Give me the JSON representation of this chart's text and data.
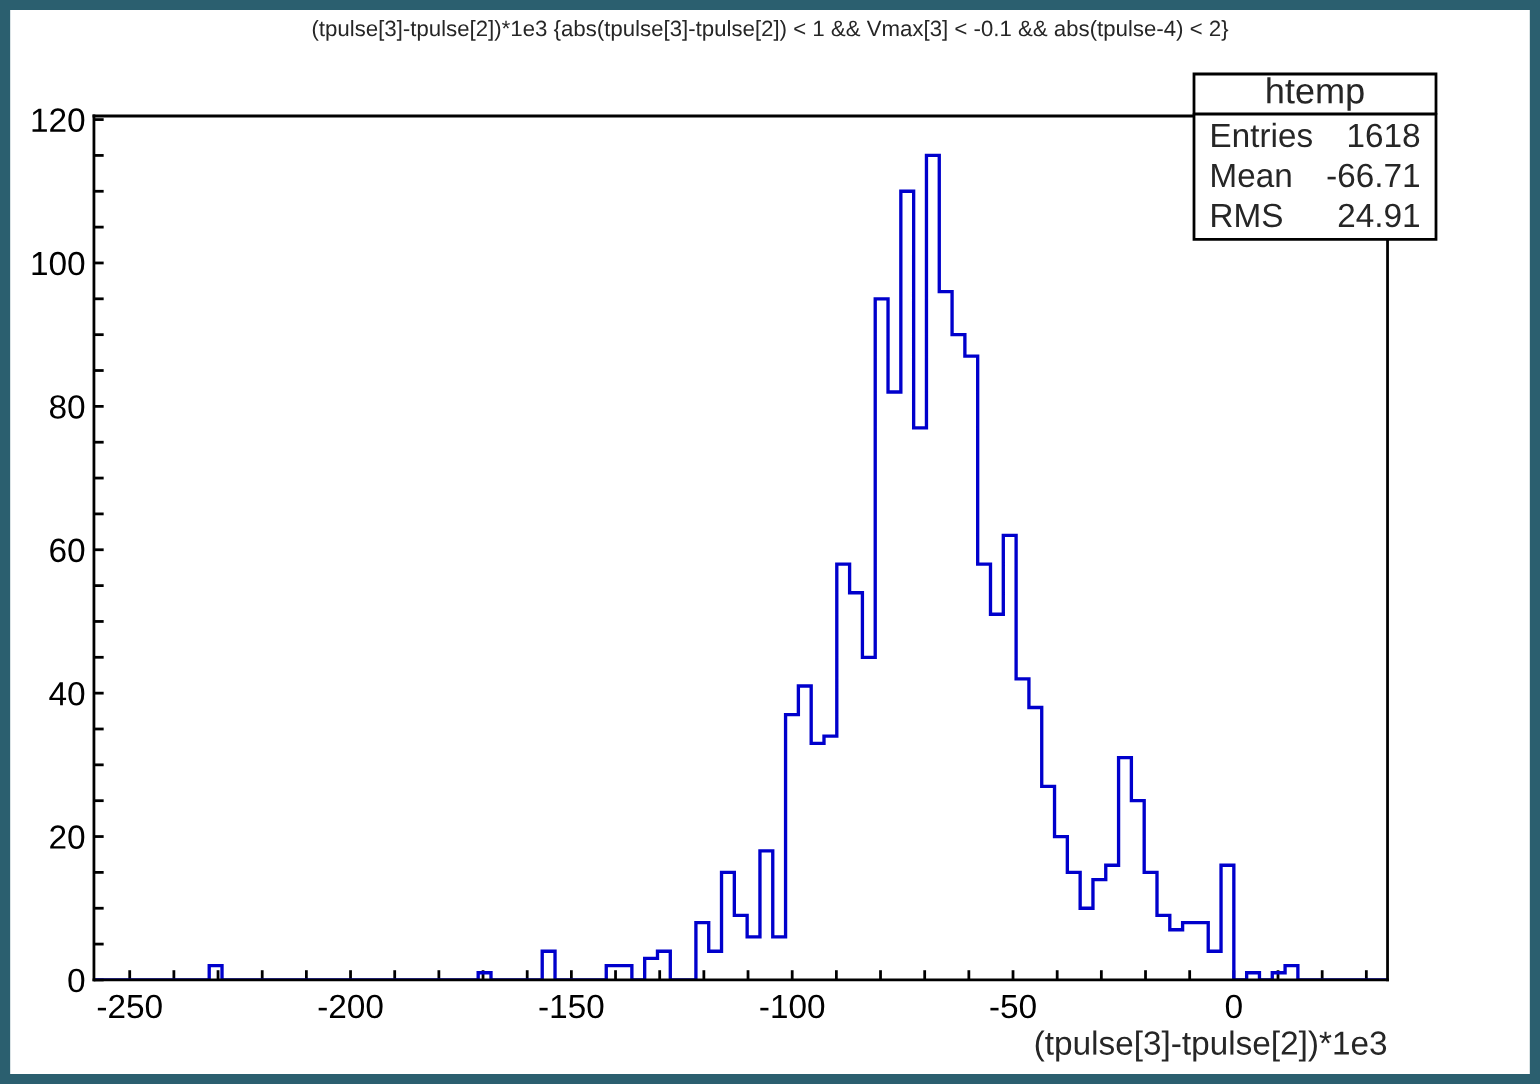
{
  "chart_data": {
    "type": "histogram",
    "title": "(tpulse[3]-tpulse[2])*1e3 {abs(tpulse[3]-tpulse[2]) < 1 && Vmax[3] < -0.1 && abs(tpulse-4) < 2}",
    "xlabel": "(tpulse[3]-tpulse[2])*1e3",
    "bins": [
      -258.1,
      -255.2,
      -252.3,
      -249.4,
      -246.5,
      -243.6,
      -240.7,
      -237.8,
      -234.9,
      -232,
      -229.1,
      -226.2,
      -223.3,
      -220.4,
      -217.5,
      -214.6,
      -211.7,
      -208.8,
      -205.9,
      -203,
      -200.1,
      -197.2,
      -194.3,
      -191.4,
      -188.5,
      -185.6,
      -182.7,
      -179.8,
      -176.9,
      -174,
      -171.1,
      -168.2,
      -165.3,
      -162.4,
      -159.5,
      -156.6,
      -153.7,
      -150.8,
      -147.9,
      -145,
      -142.1,
      -139.2,
      -136.3,
      -133.4,
      -130.5,
      -127.6,
      -124.7,
      -121.8,
      -118.9,
      -116,
      -113.1,
      -110.2,
      -107.3,
      -104.4,
      -101.5,
      -98.6,
      -95.7,
      -92.8,
      -89.9,
      -87,
      -84.1,
      -81.2,
      -78.3,
      -75.4,
      -72.5,
      -69.6,
      -66.7,
      -63.8,
      -60.9,
      -58,
      -55.1,
      -52.2,
      -49.3,
      -46.4,
      -43.5,
      -40.6,
      -37.7,
      -34.8,
      -31.9,
      -29,
      -26.1,
      -23.2,
      -20.3,
      -17.4,
      -14.5,
      -11.6,
      -8.7,
      -5.8,
      -2.9,
      0,
      2.9,
      5.8,
      8.7,
      11.6,
      14.5,
      17.4,
      20.3,
      23.2,
      26.1,
      29,
      31.9,
      34.8
    ],
    "values": [
      0,
      0,
      0,
      0,
      0,
      0,
      0,
      0,
      0,
      2,
      0,
      0,
      0,
      0,
      0,
      0,
      0,
      0,
      0,
      0,
      0,
      0,
      0,
      0,
      0,
      0,
      0,
      0,
      0,
      0,
      1,
      0,
      0,
      0,
      0,
      4,
      0,
      0,
      0,
      0,
      2,
      2,
      0,
      3,
      4,
      0,
      0,
      8,
      4,
      15,
      9,
      6,
      18,
      6,
      37,
      41,
      33,
      34,
      58,
      54,
      45,
      95,
      82,
      110,
      77,
      115,
      96,
      90,
      87,
      58,
      51,
      62,
      42,
      38,
      27,
      20,
      15,
      10,
      14,
      16,
      31,
      25,
      15,
      9,
      7,
      8,
      8,
      4,
      16,
      0,
      1,
      0,
      1,
      2,
      0,
      0,
      0,
      0,
      0,
      0,
      0
    ],
    "color": "#0000cc",
    "xlim": [
      -258.1,
      34.8
    ],
    "ylim": [
      0,
      120.5
    ],
    "xticks": [
      -250,
      {
        "value": -240,
        "label": null
      },
      {
        "value": -230,
        "label": null
      },
      {
        "value": -220,
        "label": null
      },
      {
        "value": -210,
        "label": null
      },
      -200,
      {
        "value": -190,
        "label": null
      },
      {
        "value": -180,
        "label": null
      },
      {
        "value": -170,
        "label": null
      },
      {
        "value": -160,
        "label": null
      },
      -150,
      {
        "value": -140,
        "label": null
      },
      {
        "value": -130,
        "label": null
      },
      {
        "value": -120,
        "label": null
      },
      {
        "value": -110,
        "label": null
      },
      -100,
      {
        "value": -90,
        "label": null
      },
      {
        "value": -80,
        "label": null
      },
      {
        "value": -70,
        "label": null
      },
      {
        "value": -60,
        "label": null
      },
      -50,
      {
        "value": -40,
        "label": null
      },
      {
        "value": -30,
        "label": null
      },
      {
        "value": -20,
        "label": null
      },
      {
        "value": -10,
        "label": null
      },
      0,
      {
        "value": 10,
        "label": null
      },
      {
        "value": 20,
        "label": null
      },
      {
        "value": 30,
        "label": null
      }
    ],
    "yticks": [
      0,
      {
        "value": 5,
        "label": null
      },
      {
        "value": 10,
        "label": null
      },
      {
        "value": 15,
        "label": null
      },
      20,
      {
        "value": 25,
        "label": null
      },
      {
        "value": 30,
        "label": null
      },
      {
        "value": 35,
        "label": null
      },
      40,
      {
        "value": 45,
        "label": null
      },
      {
        "value": 50,
        "label": null
      },
      {
        "value": 55,
        "label": null
      },
      60,
      {
        "value": 65,
        "label": null
      },
      {
        "value": 70,
        "label": null
      },
      {
        "value": 75,
        "label": null
      },
      80,
      {
        "value": 85,
        "label": null
      },
      {
        "value": 90,
        "label": null
      },
      {
        "value": 95,
        "label": null
      },
      100,
      {
        "value": 105,
        "label": null
      },
      {
        "value": 110,
        "label": null
      },
      {
        "value": 115,
        "label": null
      },
      120
    ],
    "grid": false,
    "annotations": [
      "htemp",
      "Entries",
      "1618",
      "Mean",
      "-66.71",
      "RMS",
      "24.91"
    ]
  }
}
